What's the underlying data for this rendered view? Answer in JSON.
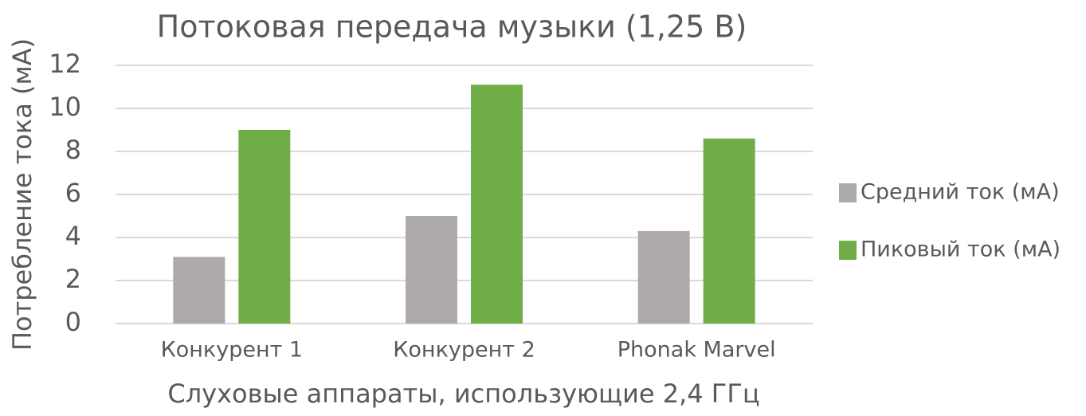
{
  "chart_data": {
    "type": "bar",
    "title": "Потоковая передача музыки (1,25 В)",
    "x_label": "Слуховые аппараты, использующие 2,4 ГГц",
    "y_label": "Потребление тока (мА)",
    "categories": [
      "Конкурент 1",
      "Конкурент 2",
      "Phonak Marvel"
    ],
    "series": [
      {
        "name": "Средний ток (мА)",
        "color": "#aeaaaa",
        "values": [
          3.1,
          5.0,
          4.3
        ]
      },
      {
        "name": "Пиковый ток (мА)",
        "color": "#70ad47",
        "values": [
          9.0,
          11.1,
          8.6
        ]
      }
    ],
    "ylim": [
      0,
      12
    ],
    "yticks": [
      0,
      2,
      4,
      6,
      8,
      10,
      12
    ],
    "grid": true,
    "legend": "right"
  }
}
